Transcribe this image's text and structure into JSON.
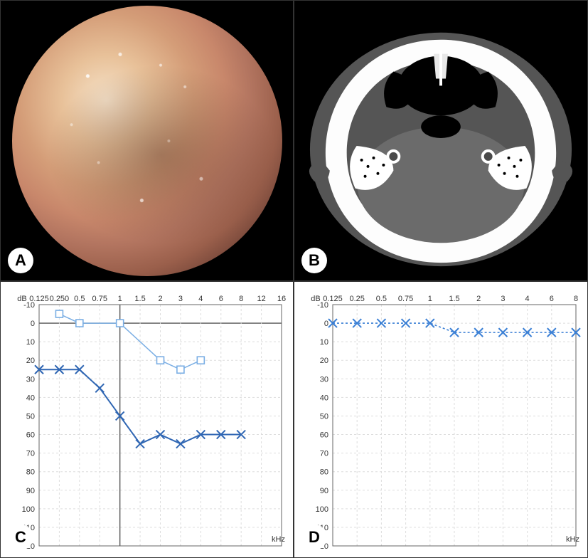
{
  "panels": {
    "A": {
      "label": "A",
      "type": "endoscopy-photo"
    },
    "B": {
      "label": "B",
      "type": "axial-ct"
    },
    "C": {
      "label": "C",
      "type": "audiogram"
    },
    "D": {
      "label": "D",
      "type": "audiogram"
    }
  },
  "audiogram_C": {
    "type": "line",
    "background_color": "#ffffff",
    "grid_color_major": "#cccccc",
    "grid_color_minor": "#dddddd",
    "axis_color": "#666666",
    "text_color": "#333333",
    "tick_fontsize": 11,
    "y_label": "dB",
    "x_label_right": "kHz",
    "y_min": -10,
    "y_max": 120,
    "y_ticks": [
      -10,
      0,
      10,
      20,
      30,
      40,
      50,
      60,
      70,
      80,
      90,
      100,
      110,
      120
    ],
    "x_ticks": [
      "0.125",
      "0.250",
      "0.5",
      "0.75",
      "1",
      "1.5",
      "2",
      "3",
      "4",
      "6",
      "8",
      "12",
      "16"
    ],
    "zero_line_emphasis": true,
    "one_khz_vline": true,
    "series": [
      {
        "name": "bone-conduction-left",
        "marker": "square-open",
        "color": "#7aaee4",
        "line_width": 1.5,
        "frequencies": [
          "0.250",
          "0.5",
          "1",
          "2",
          "3",
          "4"
        ],
        "values_dB": [
          -5,
          0,
          0,
          20,
          25,
          20
        ]
      },
      {
        "name": "air-conduction-left",
        "marker": "x",
        "color": "#2f66b3",
        "line_width": 2,
        "frequencies": [
          "0.125",
          "0.250",
          "0.5",
          "0.75",
          "1",
          "1.5",
          "2",
          "3",
          "4",
          "6",
          "8"
        ],
        "values_dB": [
          25,
          25,
          25,
          35,
          50,
          65,
          60,
          65,
          60,
          60,
          60
        ]
      }
    ]
  },
  "audiogram_D": {
    "type": "line",
    "background_color": "#ffffff",
    "grid_color_major": "#cccccc",
    "grid_color_minor": "#dddddd",
    "axis_color": "#666666",
    "text_color": "#333333",
    "tick_fontsize": 11,
    "y_label": "dB",
    "x_label_right": "kHz",
    "y_min": -10,
    "y_max": 120,
    "y_ticks": [
      -10,
      0,
      10,
      20,
      30,
      40,
      50,
      60,
      70,
      80,
      90,
      100,
      110,
      120
    ],
    "x_ticks": [
      "0.125",
      "0.25",
      "0.5",
      "0.75",
      "1",
      "1.5",
      "2",
      "3",
      "4",
      "6",
      "8"
    ],
    "zero_line_emphasis": false,
    "one_khz_vline": false,
    "series": [
      {
        "name": "air-conduction-left",
        "marker": "x",
        "color": "#3a7fd5",
        "line_width": 1.6,
        "line_dash": "3,3",
        "frequencies": [
          "0.125",
          "0.25",
          "0.5",
          "0.75",
          "1",
          "1.5",
          "2",
          "3",
          "4",
          "6",
          "8"
        ],
        "values_dB": [
          0,
          0,
          0,
          0,
          0,
          5,
          5,
          5,
          5,
          5,
          5
        ]
      }
    ]
  }
}
